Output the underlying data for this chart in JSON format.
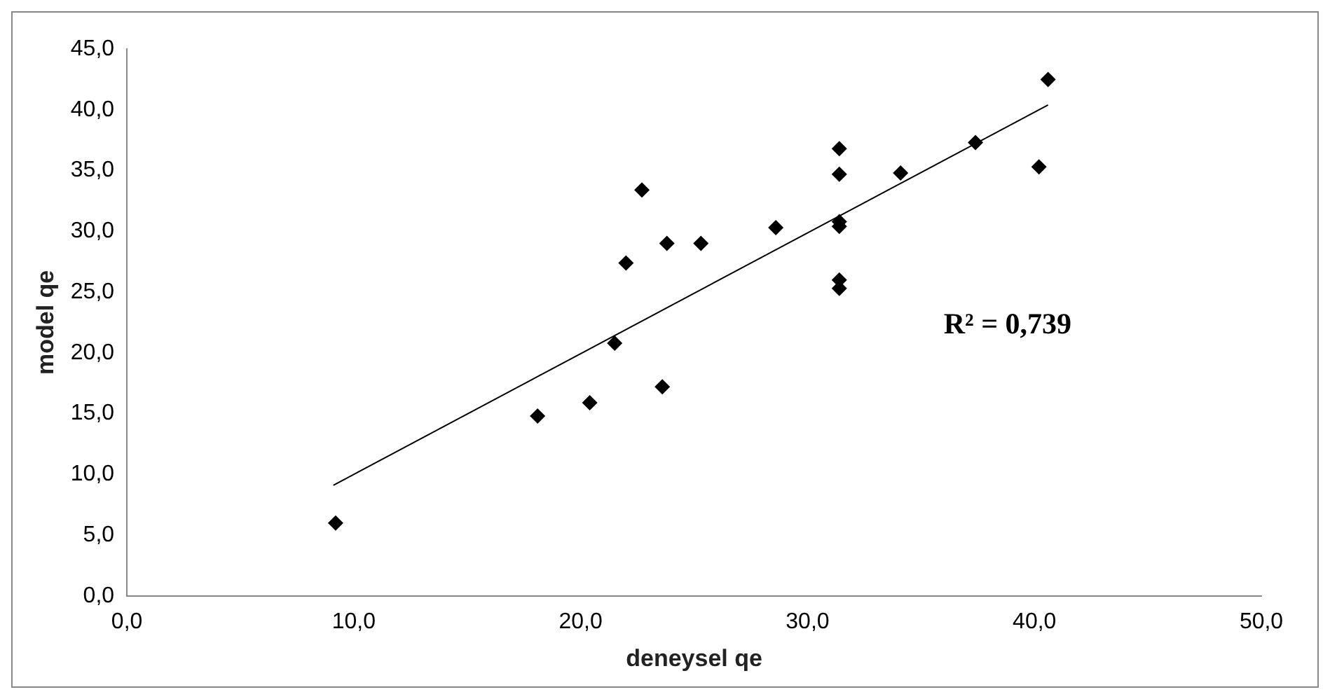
{
  "chart_data": {
    "type": "scatter",
    "xlabel": "deneysel qe",
    "ylabel": "model qe",
    "annotations": [
      "R² = 0,739"
    ],
    "xlim": [
      0,
      50
    ],
    "xticks": [
      {
        "value": 0,
        "label": "0,0"
      },
      {
        "value": 10,
        "label": "10,0"
      },
      {
        "value": 20,
        "label": "20,0"
      },
      {
        "value": 30,
        "label": "30,0"
      },
      {
        "value": 40,
        "label": "40,0"
      },
      {
        "value": 50,
        "label": "50,0"
      }
    ],
    "ylim": [
      0,
      45
    ],
    "yticks": [
      {
        "value": 0,
        "label": "0,0"
      },
      {
        "value": 5,
        "label": "5,0"
      },
      {
        "value": 10,
        "label": "10,0"
      },
      {
        "value": 15,
        "label": "15,0"
      },
      {
        "value": 20,
        "label": "20,0"
      },
      {
        "value": 25,
        "label": "25,0"
      },
      {
        "value": 30,
        "label": "30,0"
      },
      {
        "value": 35,
        "label": "35,0"
      },
      {
        "value": 40,
        "label": "40,0"
      },
      {
        "value": 45,
        "label": "45,0"
      }
    ],
    "grid": false,
    "legend": false,
    "series": [
      {
        "type": "scatter",
        "marker": "diamond",
        "color": "#000000",
        "x": [
          9.2,
          18.1,
          20.4,
          21.5,
          22.0,
          22.7,
          23.6,
          23.8,
          25.3,
          28.6,
          31.4,
          31.4,
          31.4,
          31.4,
          31.4,
          31.4,
          34.1,
          37.4,
          40.2,
          40.6
        ],
        "values": [
          6.0,
          14.8,
          15.9,
          20.8,
          27.4,
          33.4,
          17.2,
          29.0,
          29.0,
          30.3,
          36.8,
          34.7,
          30.8,
          30.4,
          26.0,
          25.3,
          34.8,
          37.3,
          35.3,
          42.5
        ]
      },
      {
        "type": "line",
        "marker": "none",
        "color": "#000000",
        "x": [
          9.1,
          40.6
        ],
        "values": [
          9.1,
          40.4
        ]
      }
    ]
  }
}
